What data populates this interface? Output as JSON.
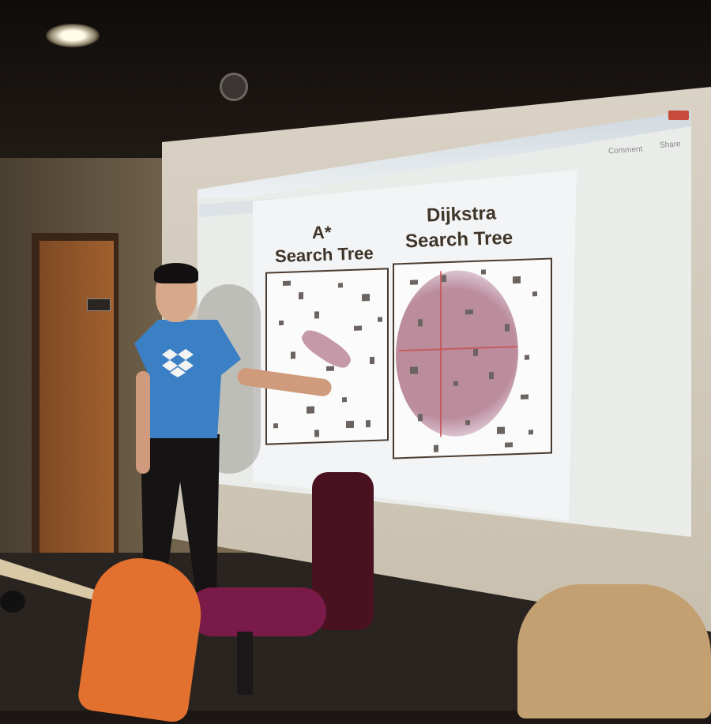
{
  "slide": {
    "left_title_line1": "A*",
    "left_title_line2": "Search Tree",
    "right_title_line1": "Dijkstra",
    "right_title_line2": "Search Tree"
  },
  "app": {
    "comment_label": "Comment",
    "share_label": "Share"
  },
  "colors": {
    "slide_text": "#3f3428",
    "shirt": "#3b7fc4",
    "search_region": "#b47c8c",
    "obstacle": "#6b6461"
  },
  "icons": {
    "logo": "dropbox-icon"
  }
}
